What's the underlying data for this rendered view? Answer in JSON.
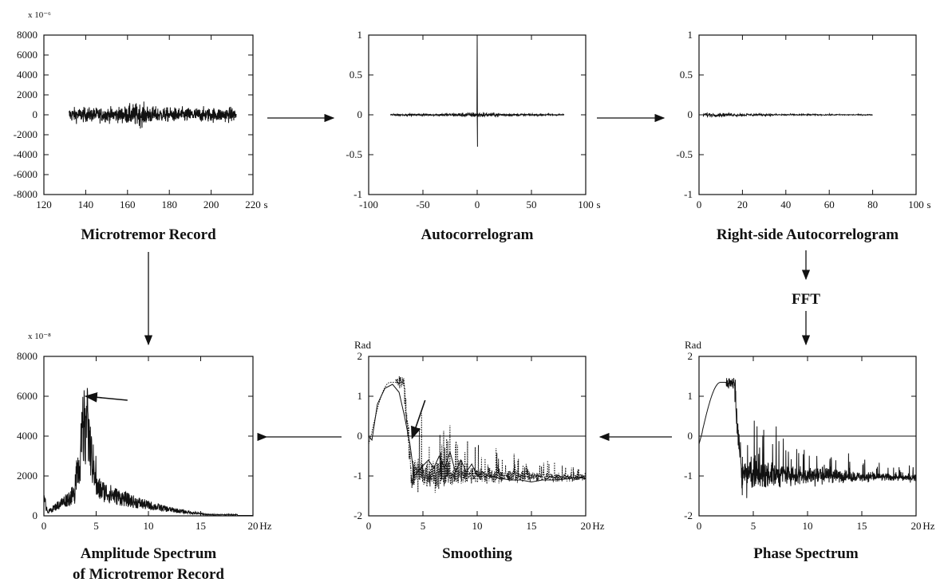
{
  "diagram": {
    "steps": [
      {
        "id": "record",
        "title": "Microtremor Record"
      },
      {
        "id": "autocorr",
        "title": "Autocorrelogram"
      },
      {
        "id": "rightauto",
        "title": "Right-side Autocorrelogram"
      },
      {
        "id": "fft",
        "title": "FFT"
      },
      {
        "id": "phase",
        "title": "Phase Spectrum"
      },
      {
        "id": "smooth",
        "title": "Smoothing"
      },
      {
        "id": "amp",
        "title": "Amplitude Spectrum",
        "title2": "of Microtremor Record"
      }
    ],
    "flow": [
      "record→autocorr",
      "autocorr→rightauto",
      "rightauto→fft",
      "fft→phase",
      "phase→smooth",
      "smooth→amp",
      "record→amp"
    ]
  },
  "chart_data": [
    {
      "id": "record",
      "type": "line",
      "title": "Microtremor Record",
      "xlabel": "s",
      "ylabel": "",
      "y_exponent": "x 10⁻⁶",
      "xlim": [
        120,
        220
      ],
      "ylim": [
        -8000,
        8000
      ],
      "xticks": [
        "120",
        "140",
        "160",
        "180",
        "200",
        "220"
      ],
      "yticks": [
        "8000",
        "6000",
        "4000",
        "2000",
        "0",
        "-2000",
        "-4000",
        "-6000",
        "-8000"
      ],
      "series": [
        {
          "signal": "noise",
          "x_range": [
            132,
            212
          ],
          "amplitude": 1200
        }
      ]
    },
    {
      "id": "autocorr",
      "type": "line",
      "title": "Autocorrelogram",
      "xlabel": "s",
      "ylabel": "",
      "xlim": [
        -100,
        100
      ],
      "ylim": [
        -1,
        1
      ],
      "xticks": [
        "-100",
        "-50",
        "0",
        "50",
        "100"
      ],
      "yticks": [
        "1",
        "0.5",
        "0",
        "-0.5",
        "-1"
      ],
      "series": [
        {
          "signal": "symmetric-decay",
          "x_range": [
            -80,
            80
          ],
          "peak": 1,
          "amplitude": 0.06
        }
      ]
    },
    {
      "id": "rightauto",
      "type": "line",
      "title": "Right-side Autocorrelogram",
      "xlabel": "s",
      "ylabel": "",
      "xlim": [
        0,
        100
      ],
      "ylim": [
        -1,
        1
      ],
      "xticks": [
        "0",
        "20",
        "40",
        "60",
        "80",
        "100"
      ],
      "yticks": [
        "1",
        "0.5",
        "0",
        "-0.5",
        "-1"
      ],
      "series": [
        {
          "signal": "decay",
          "x_range": [
            2,
            80
          ],
          "amplitude": 0.05
        }
      ]
    },
    {
      "id": "amp",
      "type": "line",
      "title": "Amplitude Spectrum of Microtremor Record",
      "xlabel": "Hz",
      "ylabel": "",
      "y_exponent": "x 10⁻⁸",
      "xlim": [
        0,
        20
      ],
      "ylim": [
        0,
        8000
      ],
      "xticks": [
        "0",
        "5",
        "10",
        "15",
        "20"
      ],
      "yticks": [
        "8000",
        "6000",
        "4000",
        "2000",
        "0"
      ],
      "series": [
        {
          "signal": "spectrum",
          "peak_x": 4,
          "peak_y": 6000
        }
      ],
      "annotation": {
        "type": "pointer",
        "from": [
          8,
          5800
        ],
        "to": [
          4,
          6000
        ]
      }
    },
    {
      "id": "smooth",
      "type": "line",
      "title": "Smoothing",
      "xlabel": "Hz",
      "ylabel": "Rad",
      "xlim": [
        0,
        20
      ],
      "ylim": [
        -2,
        2
      ],
      "xticks": [
        "0",
        "5",
        "10",
        "15",
        "20"
      ],
      "yticks": [
        "2",
        "1",
        "0",
        "-1",
        "-2"
      ],
      "series": [
        {
          "name": "raw",
          "style": "dotted",
          "signal": "phase"
        },
        {
          "name": "smoothed",
          "style": "solid",
          "x": [
            0,
            0.3,
            0.8,
            1.5,
            2.2,
            2.8,
            3.3,
            3.8,
            4.2,
            4.8,
            5.5,
            6,
            6.5,
            7,
            7.5,
            8,
            8.5,
            9,
            9.5,
            10,
            10.5,
            11,
            12,
            13,
            14,
            15,
            16,
            17,
            18,
            19,
            20
          ],
          "y": [
            0,
            -0.1,
            0.8,
            1.2,
            1.3,
            1.1,
            0.5,
            -0.2,
            -1.0,
            -0.8,
            -0.6,
            -0.8,
            -0.5,
            -0.8,
            -0.4,
            -0.9,
            -0.6,
            -0.9,
            -0.7,
            -1.0,
            -0.9,
            -1.0,
            -1.05,
            -1.1,
            -1.1,
            -1.15,
            -1.1,
            -1.1,
            -1.08,
            -1.05,
            -1.05
          ]
        }
      ],
      "annotation": {
        "type": "pointer",
        "from": [
          5.2,
          0.9
        ],
        "to": [
          4,
          -0.05
        ]
      }
    },
    {
      "id": "phase",
      "type": "line",
      "title": "Phase Spectrum",
      "xlabel": "Hz",
      "ylabel": "Rad",
      "xlim": [
        0,
        20
      ],
      "ylim": [
        -2,
        2
      ],
      "xticks": [
        "0",
        "5",
        "10",
        "15",
        "20"
      ],
      "yticks": [
        "2",
        "1",
        "0",
        "-1",
        "-2"
      ],
      "series": [
        {
          "signal": "phase"
        }
      ]
    }
  ]
}
